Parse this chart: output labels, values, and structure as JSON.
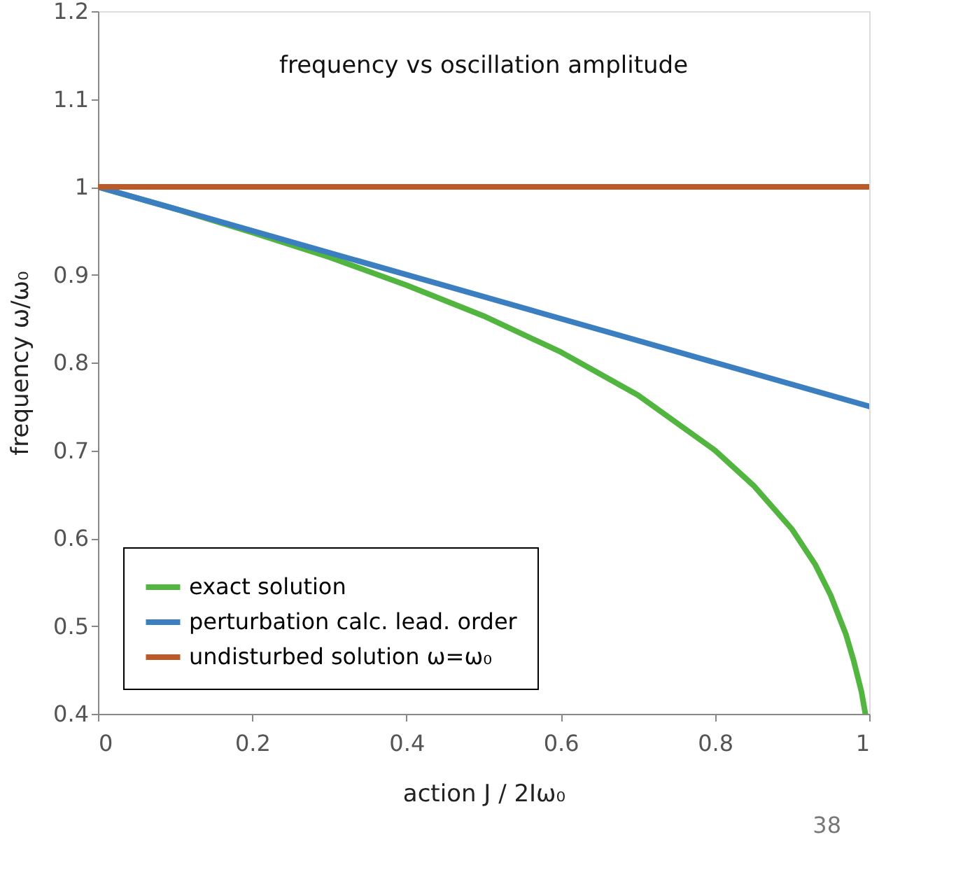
{
  "chart_data": {
    "type": "line",
    "title": "frequency vs oscillation amplitude",
    "xlabel": "action J / 2Iω₀",
    "ylabel": "frequency ω/ω₀",
    "xlim": [
      0,
      1
    ],
    "ylim": [
      0.4,
      1.2
    ],
    "xticks": [
      0,
      0.2,
      0.4,
      0.6,
      0.8,
      1
    ],
    "yticks": [
      0.4,
      0.5,
      0.6,
      0.7,
      0.8,
      0.9,
      1,
      1.1,
      1.2
    ],
    "grid": false,
    "legend": "bottom left",
    "marker": "none",
    "line_style": "solid",
    "series": [
      {
        "name": "exact solution",
        "color": "#52b540",
        "x": [
          0,
          0.1,
          0.2,
          0.3,
          0.4,
          0.5,
          0.6,
          0.7,
          0.8,
          0.85,
          0.9,
          0.93,
          0.95,
          0.97,
          0.98,
          0.99,
          0.995
        ],
        "values": [
          1,
          0.975,
          0.948,
          0.92,
          0.888,
          0.853,
          0.812,
          0.763,
          0.7,
          0.66,
          0.61,
          0.57,
          0.535,
          0.49,
          0.46,
          0.425,
          0.4
        ]
      },
      {
        "name": "perturbation calc. lead. order",
        "color": "#3b7fc0",
        "x": [
          0,
          1
        ],
        "values": [
          1,
          0.75
        ]
      },
      {
        "name": "undisturbed solution ω=ω₀",
        "color": "#bb5a26",
        "x": [
          0,
          1
        ],
        "values": [
          1,
          1
        ]
      }
    ],
    "annotations": [
      "38"
    ]
  }
}
